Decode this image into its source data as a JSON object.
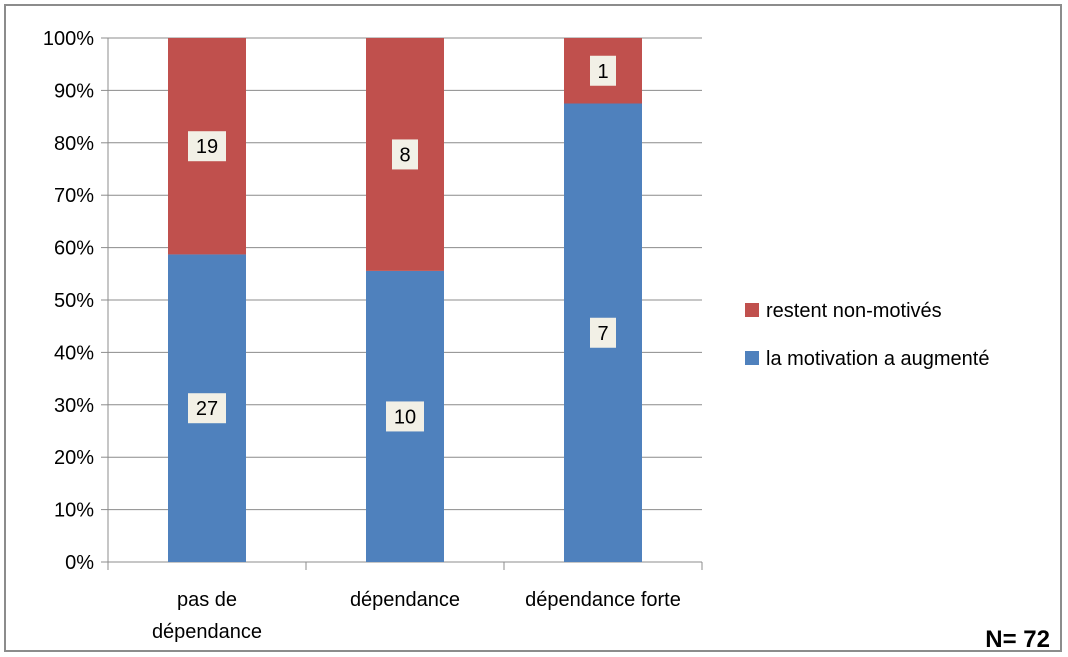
{
  "chart_data": {
    "type": "bar",
    "stacked": true,
    "normalized": true,
    "categories": [
      "pas de dépendance",
      "dépendance",
      "dépendance forte"
    ],
    "category_lines": [
      [
        "pas de",
        "dépendance"
      ],
      [
        "dépendance"
      ],
      [
        "dépendance forte"
      ]
    ],
    "series": [
      {
        "name": "la motivation a augmenté",
        "values": [
          27,
          10,
          7
        ],
        "color": "#4f81bd"
      },
      {
        "name": "restent non-motivés",
        "values": [
          19,
          8,
          1
        ],
        "color": "#c0504d"
      }
    ],
    "y_ticks": [
      "0%",
      "10%",
      "20%",
      "30%",
      "40%",
      "50%",
      "60%",
      "70%",
      "80%",
      "90%",
      "100%"
    ],
    "ylim": [
      0,
      100
    ],
    "grid": true,
    "legend_position": "right",
    "legend_order": [
      "restent non-motivés",
      "la motivation a augmenté"
    ],
    "title": "",
    "xlabel": "",
    "ylabel": ""
  },
  "note": "N= 72"
}
